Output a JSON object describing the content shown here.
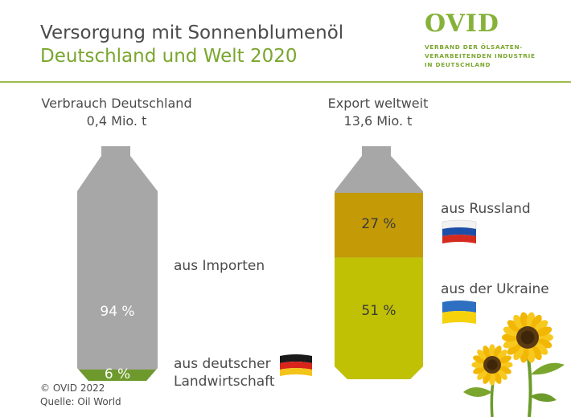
{
  "header": {
    "title_line1": "Versorgung mit Sonnenblumenöl",
    "title_line2": "Deutschland und Welt 2020"
  },
  "logo": {
    "name": "OVID",
    "subtitle_line1": "VERBAND DER ÖLSAATEN-",
    "subtitle_line2": "VERARBEITENDEN INDUSTRIE",
    "subtitle_line3": "IN DEUTSCHLAND"
  },
  "colors": {
    "bottle_grey": "#a7a7a7",
    "green": "#6e9a2d",
    "orange": "#c59a07",
    "yellow_green": "#c0c105",
    "accent_green": "#7aa62e"
  },
  "chart_data": [
    {
      "type": "bar",
      "title": "Verbrauch Deutschland",
      "subtitle": "0,4 Mio. t",
      "unit": "%",
      "segments": [
        {
          "label": "aus deutscher Landwirtschaft",
          "label_line1": "aus deutscher",
          "label_line2": "Landwirtschaft",
          "value": 6,
          "value_label": "6 %",
          "flag": "germany-flag-icon"
        },
        {
          "label": "aus Importen",
          "value": 94,
          "value_label": "94 %"
        }
      ]
    },
    {
      "type": "bar",
      "title": "Export weltweit",
      "subtitle": "13,6 Mio. t",
      "unit": "%",
      "segments": [
        {
          "label": "aus der Ukraine",
          "value": 51,
          "value_label": "51 %",
          "flag": "ukraine-flag-icon"
        },
        {
          "label": "aus Russland",
          "value": 27,
          "value_label": "27 %",
          "flag": "russia-flag-icon"
        },
        {
          "label": "",
          "value": 22,
          "value_label": ""
        }
      ]
    }
  ],
  "footer": {
    "copyright": "© OVID 2022",
    "source": "Quelle: Oil World"
  }
}
